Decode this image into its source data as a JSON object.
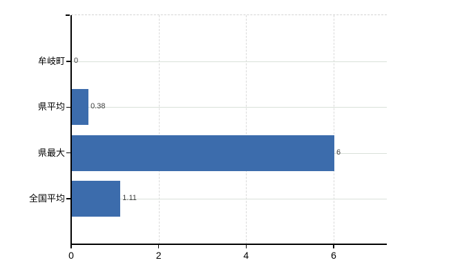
{
  "chart_data": {
    "type": "bar",
    "orientation": "horizontal",
    "title": "",
    "xlabel": "",
    "ylabel": "",
    "categories": [
      "牟岐町",
      "県平均",
      "県最大",
      "全国平均"
    ],
    "values": [
      0,
      0.38,
      6,
      1.11
    ],
    "value_labels": [
      "0",
      "0.38",
      "6",
      "1.11"
    ],
    "x_ticks": [
      0,
      2,
      4,
      6
    ],
    "x_tick_labels": [
      "0",
      "2",
      "4",
      "6"
    ],
    "xlim": [
      0,
      7.2
    ],
    "grid": true,
    "legend": "none",
    "colors": {
      "bar": "#3c6cac",
      "horizontal_grid": "#d9e1d9",
      "vertical_grid": "#d9d9d9",
      "top_border": "#d2d2d2",
      "axis": "#000000",
      "value_label": "#3d3d3d",
      "tick_label": "#000000"
    }
  }
}
